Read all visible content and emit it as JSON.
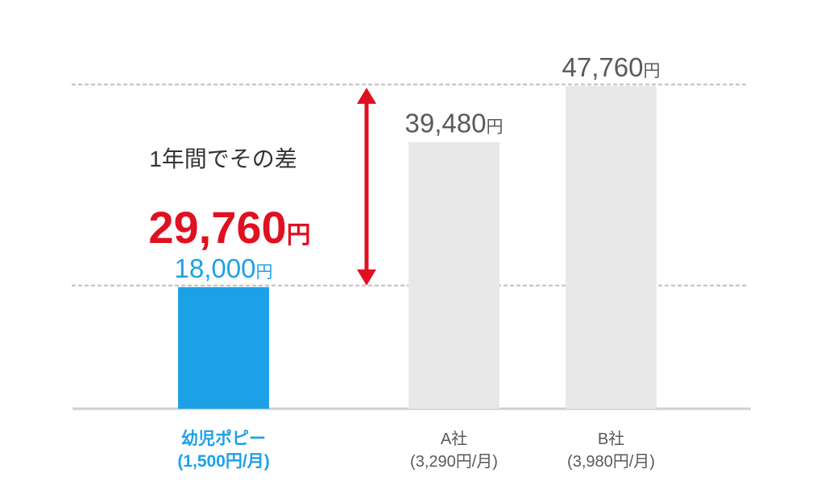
{
  "chart_data": {
    "type": "bar",
    "categories": [
      "幼児ポピー",
      "A社",
      "B社"
    ],
    "category_sublabels": [
      "(1,500円/月)",
      "(3,290円/月)",
      "(3,980円/月)"
    ],
    "values": [
      18000,
      39480,
      47760
    ],
    "value_labels": [
      {
        "number": "18,000",
        "unit": "円"
      },
      {
        "number": "39,480",
        "unit": "円"
      },
      {
        "number": "47,760",
        "unit": "円"
      }
    ],
    "colors": [
      "#1da1e6",
      "#e8e8e8",
      "#e8e8e8"
    ],
    "label_colors": [
      "#1da1e6",
      "#5a5a5a",
      "#5a5a5a"
    ],
    "ylim": [
      0,
      47760
    ],
    "difference": {
      "caption": "1年間でその差",
      "number": "29,760",
      "unit": "円",
      "color": "#e01020"
    },
    "reference_line_color": "#c8c8c8",
    "baseline_color": "#cfcfcf"
  }
}
